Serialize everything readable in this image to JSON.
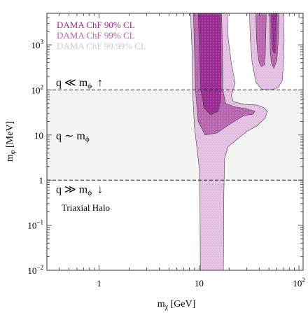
{
  "chart_data": {
    "type": "area",
    "xscale": "log",
    "yscale": "log",
    "xlim": [
      0.3,
      110
    ],
    "ylim": [
      0.01,
      5000
    ],
    "xlabel": "m_χ [GeV]",
    "ylabel": "m_φ [MeV]",
    "xticks": [
      {
        "value": 1,
        "label": "1"
      },
      {
        "value": 10,
        "label": "10"
      },
      {
        "value": 100,
        "label": "10",
        "sup": "2"
      }
    ],
    "yticks": [
      {
        "value": 0.01,
        "label": "10",
        "sup": "−2"
      },
      {
        "value": 0.1,
        "label": "10",
        "sup": "−1"
      },
      {
        "value": 1,
        "label": "1"
      },
      {
        "value": 10,
        "label": "10"
      },
      {
        "value": 100,
        "label": "10",
        "sup": "2"
      },
      {
        "value": 1000,
        "label": "10",
        "sup": "3"
      }
    ],
    "legend": {
      "placement": "top-left",
      "entries": [
        {
          "label": "DAMA ChF 90% CL",
          "color": "#9c2a93"
        },
        {
          "label": "DAMA ChF 99% CL",
          "color": "#b765ae"
        },
        {
          "label": "DAMA ChF 99.99% CL",
          "color": "#e2bfe0"
        }
      ]
    },
    "band": {
      "y_range": [
        1,
        100
      ],
      "color": "#f4f4f4"
    },
    "dashed_lines": [
      1,
      100
    ],
    "regime_labels": [
      {
        "text": "q ≪ m",
        "sub": "ϕ",
        "arrow": "↑",
        "y": 150
      },
      {
        "text": "q ∼ m",
        "sub": "ϕ",
        "arrow": "",
        "y": 10
      },
      {
        "text": "q ≫ m",
        "sub": "ϕ",
        "arrow": "↓",
        "y": 0.65
      }
    ],
    "annotation": {
      "text": "Triaxial Halo",
      "x": 0.42,
      "y": 0.25
    },
    "regions": [
      {
        "level": "99.99% CL",
        "color": "#e2bfe0",
        "polygons": [
          [
            [
              8.2,
              5000
            ],
            [
              8.5,
              800
            ],
            [
              8.6,
              100
            ],
            [
              9.0,
              15
            ],
            [
              10.0,
              2.0
            ],
            [
              10.2,
              0.5
            ],
            [
              10.3,
              0.01
            ],
            [
              17.5,
              0.01
            ],
            [
              17.7,
              0.5
            ],
            [
              18.0,
              3.0
            ],
            [
              19.5,
              5.5
            ],
            [
              24,
              8
            ],
            [
              30,
              12
            ],
            [
              38,
              16
            ],
            [
              46,
              24
            ],
            [
              48,
              33
            ],
            [
              45,
              40
            ],
            [
              38,
              46
            ],
            [
              28,
              48
            ],
            [
              22,
              55
            ],
            [
              21,
              75
            ],
            [
              23,
              140
            ],
            [
              21,
              400
            ],
            [
              19.5,
              1500
            ],
            [
              19.2,
              5000
            ]
          ],
          [
            [
              32,
              5000
            ],
            [
              32.5,
              1500
            ],
            [
              34,
              400
            ],
            [
              37,
              150
            ],
            [
              42,
              105
            ],
            [
              48,
              100
            ],
            [
              55,
              102
            ],
            [
              62,
              115
            ],
            [
              68,
              160
            ],
            [
              70,
              400
            ],
            [
              71,
              1200
            ],
            [
              70,
              5000
            ]
          ]
        ]
      },
      {
        "level": "99% CL",
        "color": "#b765ae",
        "polygons": [
          [
            [
              8.8,
              5000
            ],
            [
              9.0,
              800
            ],
            [
              9.2,
              100
            ],
            [
              9.8,
              20
            ],
            [
              11.5,
              10
            ],
            [
              15,
              11
            ],
            [
              20,
              17
            ],
            [
              28,
              27
            ],
            [
              35,
              29
            ],
            [
              36,
              34
            ],
            [
              30,
              38
            ],
            [
              23,
              42
            ],
            [
              18.5,
              50
            ],
            [
              17.3,
              100
            ],
            [
              17.2,
              500
            ],
            [
              17.0,
              1500
            ],
            [
              16.8,
              5000
            ]
          ],
          [
            [
              37,
              5000
            ],
            [
              37.5,
              1500
            ],
            [
              38.5,
              700
            ],
            [
              40,
              400
            ],
            [
              42,
              330
            ],
            [
              45,
              360
            ],
            [
              46,
              600
            ],
            [
              46.5,
              1500
            ],
            [
              47,
              5000
            ]
          ],
          [
            [
              51,
              5000
            ],
            [
              51.5,
              700
            ],
            [
              53,
              400
            ],
            [
              56,
              300
            ],
            [
              60,
              450
            ],
            [
              62,
              1200
            ],
            [
              63,
              5000
            ]
          ]
        ]
      },
      {
        "level": "90% CL",
        "color": "#9c2a93",
        "polygons": [
          [
            [
              9.8,
              5000
            ],
            [
              10.1,
              800
            ],
            [
              10.4,
              100
            ],
            [
              11.2,
              40
            ],
            [
              13.0,
              28
            ],
            [
              15.5,
              33
            ],
            [
              16.5,
              60
            ],
            [
              16.6,
              300
            ],
            [
              16.5,
              1500
            ],
            [
              16.3,
              5000
            ]
          ],
          [
            [
              53,
              5000
            ],
            [
              53.5,
              1200
            ],
            [
              55,
              700
            ],
            [
              58,
              650
            ],
            [
              59,
              1200
            ],
            [
              59.5,
              5000
            ]
          ]
        ]
      }
    ]
  }
}
